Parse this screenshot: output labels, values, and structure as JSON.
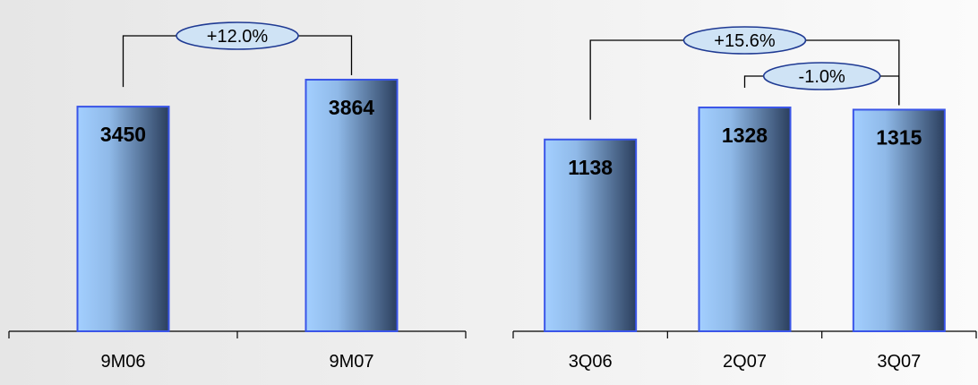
{
  "chart_data": [
    {
      "type": "bar",
      "categories": [
        "9M06",
        "9M07"
      ],
      "values": [
        3450,
        3864
      ],
      "title": "",
      "xlabel": "",
      "ylabel": "",
      "ylim": [
        0,
        4400
      ],
      "grid": false,
      "annotations": [
        {
          "from": 0,
          "to": 1,
          "text": "+12.0%"
        }
      ]
    },
    {
      "type": "bar",
      "categories": [
        "3Q06",
        "2Q07",
        "3Q07"
      ],
      "values": [
        1138,
        1328,
        1315
      ],
      "title": "",
      "xlabel": "",
      "ylabel": "",
      "ylim": [
        0,
        1700
      ],
      "grid": false,
      "annotations": [
        {
          "from": 0,
          "to": 2,
          "text": "+15.6%"
        },
        {
          "from": 1,
          "to": 2,
          "text": "-1.0%"
        }
      ]
    }
  ],
  "colors": {
    "bar_light": "#a3cfff",
    "bar_dark": "#2b3f5e",
    "bar_border": "#3a55e8",
    "ellipse_fill": "#cfe3f5",
    "ellipse_border": "#1f3a93"
  }
}
